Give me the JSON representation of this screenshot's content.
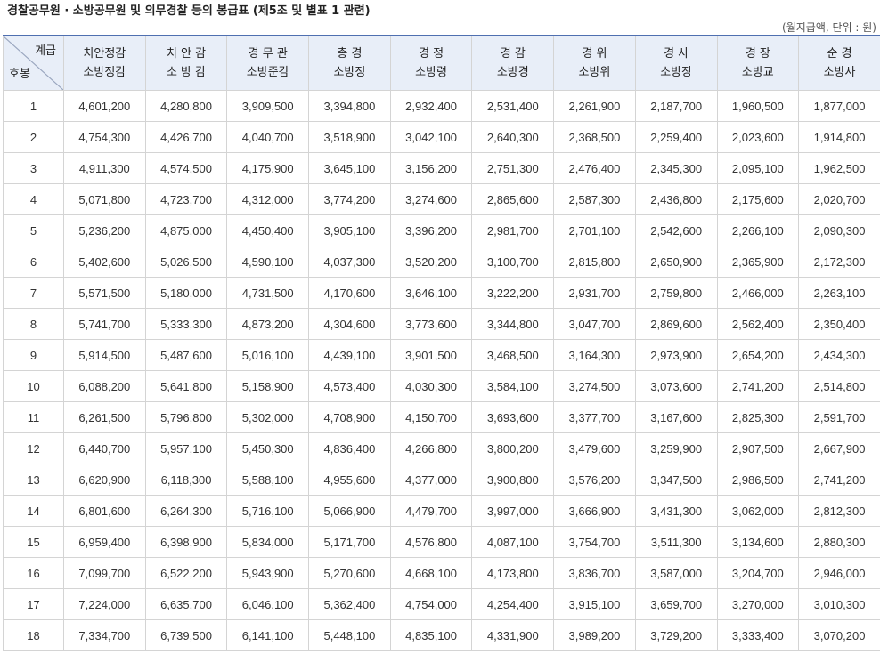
{
  "title": "경찰공무원 · 소방공무원 및 의무경찰 등의 봉급표 (제5조 및 별표 1 관련)",
  "unit_note": "(월지급액, 단위 : 원)",
  "corner": {
    "top": "계급",
    "bottom": "호봉"
  },
  "grades": [
    {
      "police": "치안정감",
      "fire": "소방정감"
    },
    {
      "police": "치 안 감",
      "fire": "소 방 감"
    },
    {
      "police": "경 무 관",
      "fire": "소방준감"
    },
    {
      "police": "총 경",
      "fire": "소방정"
    },
    {
      "police": "경 정",
      "fire": "소방령"
    },
    {
      "police": "경 감",
      "fire": "소방경"
    },
    {
      "police": "경 위",
      "fire": "소방위"
    },
    {
      "police": "경 사",
      "fire": "소방장"
    },
    {
      "police": "경 장",
      "fire": "소방교"
    },
    {
      "police": "순 경",
      "fire": "소방사"
    }
  ],
  "rows": [
    {
      "step": "1",
      "values": [
        "4,601,200",
        "4,280,800",
        "3,909,500",
        "3,394,800",
        "2,932,400",
        "2,531,400",
        "2,261,900",
        "2,187,700",
        "1,960,500",
        "1,877,000"
      ]
    },
    {
      "step": "2",
      "values": [
        "4,754,300",
        "4,426,700",
        "4,040,700",
        "3,518,900",
        "3,042,100",
        "2,640,300",
        "2,368,500",
        "2,259,400",
        "2,023,600",
        "1,914,800"
      ]
    },
    {
      "step": "3",
      "values": [
        "4,911,300",
        "4,574,500",
        "4,175,900",
        "3,645,100",
        "3,156,200",
        "2,751,300",
        "2,476,400",
        "2,345,300",
        "2,095,100",
        "1,962,500"
      ]
    },
    {
      "step": "4",
      "values": [
        "5,071,800",
        "4,723,700",
        "4,312,000",
        "3,774,200",
        "3,274,600",
        "2,865,600",
        "2,587,300",
        "2,436,800",
        "2,175,600",
        "2,020,700"
      ]
    },
    {
      "step": "5",
      "values": [
        "5,236,200",
        "4,875,000",
        "4,450,400",
        "3,905,100",
        "3,396,200",
        "2,981,700",
        "2,701,100",
        "2,542,600",
        "2,266,100",
        "2,090,300"
      ]
    },
    {
      "step": "6",
      "values": [
        "5,402,600",
        "5,026,500",
        "4,590,100",
        "4,037,300",
        "3,520,200",
        "3,100,700",
        "2,815,800",
        "2,650,900",
        "2,365,900",
        "2,172,300"
      ]
    },
    {
      "step": "7",
      "values": [
        "5,571,500",
        "5,180,000",
        "4,731,500",
        "4,170,600",
        "3,646,100",
        "3,222,200",
        "2,931,700",
        "2,759,800",
        "2,466,000",
        "2,263,100"
      ]
    },
    {
      "step": "8",
      "values": [
        "5,741,700",
        "5,333,300",
        "4,873,200",
        "4,304,600",
        "3,773,600",
        "3,344,800",
        "3,047,700",
        "2,869,600",
        "2,562,400",
        "2,350,400"
      ]
    },
    {
      "step": "9",
      "values": [
        "5,914,500",
        "5,487,600",
        "5,016,100",
        "4,439,100",
        "3,901,500",
        "3,468,500",
        "3,164,300",
        "2,973,900",
        "2,654,200",
        "2,434,300"
      ]
    },
    {
      "step": "10",
      "values": [
        "6,088,200",
        "5,641,800",
        "5,158,900",
        "4,573,400",
        "4,030,300",
        "3,584,100",
        "3,274,500",
        "3,073,600",
        "2,741,200",
        "2,514,800"
      ]
    },
    {
      "step": "11",
      "values": [
        "6,261,500",
        "5,796,800",
        "5,302,000",
        "4,708,900",
        "4,150,700",
        "3,693,600",
        "3,377,700",
        "3,167,600",
        "2,825,300",
        "2,591,700"
      ]
    },
    {
      "step": "12",
      "values": [
        "6,440,700",
        "5,957,100",
        "5,450,300",
        "4,836,400",
        "4,266,800",
        "3,800,200",
        "3,479,600",
        "3,259,900",
        "2,907,500",
        "2,667,900"
      ]
    },
    {
      "step": "13",
      "values": [
        "6,620,900",
        "6,118,300",
        "5,588,100",
        "4,955,600",
        "4,377,000",
        "3,900,800",
        "3,576,200",
        "3,347,500",
        "2,986,500",
        "2,741,200"
      ]
    },
    {
      "step": "14",
      "values": [
        "6,801,600",
        "6,264,300",
        "5,716,100",
        "5,066,900",
        "4,479,700",
        "3,997,000",
        "3,666,900",
        "3,431,300",
        "3,062,000",
        "2,812,300"
      ]
    },
    {
      "step": "15",
      "values": [
        "6,959,400",
        "6,398,900",
        "5,834,000",
        "5,171,700",
        "4,576,800",
        "4,087,100",
        "3,754,700",
        "3,511,300",
        "3,134,600",
        "2,880,300"
      ]
    },
    {
      "step": "16",
      "values": [
        "7,099,700",
        "6,522,200",
        "5,943,900",
        "5,270,600",
        "4,668,100",
        "4,173,800",
        "3,836,700",
        "3,587,000",
        "3,204,700",
        "2,946,000"
      ]
    },
    {
      "step": "17",
      "values": [
        "7,224,000",
        "6,635,700",
        "6,046,100",
        "5,362,400",
        "4,754,000",
        "4,254,400",
        "3,915,100",
        "3,659,700",
        "3,270,000",
        "3,010,300"
      ]
    },
    {
      "step": "18",
      "values": [
        "7,334,700",
        "6,739,500",
        "6,141,100",
        "5,448,100",
        "4,835,100",
        "4,331,900",
        "3,989,200",
        "3,729,200",
        "3,333,400",
        "3,070,200"
      ]
    }
  ]
}
